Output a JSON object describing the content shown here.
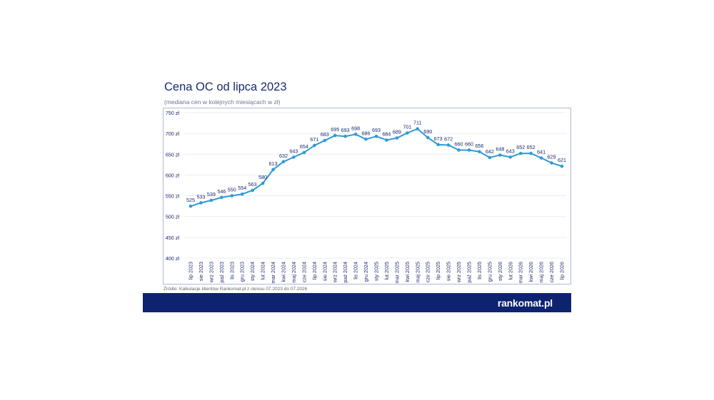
{
  "title": "Cena OC od lipca 2023",
  "subtitle": "(mediana cen w kolejnych miesiącach w zł)",
  "source": "Źródło: Kalkulacje klientów Rankomat.pl z okresu 07.2023 do 07.2026",
  "brand": {
    "logo_text": "rankomat.pl",
    "footer_color": "#0d2370"
  },
  "colors": {
    "line": "#2f9bd4",
    "text": "#1c2a6e",
    "grid": "#e4e8f1"
  },
  "chart_data": {
    "type": "line",
    "title": "Cena OC od lipca 2023",
    "subtitle": "(mediana cen w kolejnych miesiącach w zł)",
    "xlabel": "",
    "ylabel": "",
    "ylim": [
      400,
      750
    ],
    "y_ticks": [
      {
        "value": 400,
        "label": "400 zł"
      },
      {
        "value": 450,
        "label": "450 zł"
      },
      {
        "value": 500,
        "label": "500 zł"
      },
      {
        "value": 550,
        "label": "550 zł"
      },
      {
        "value": 600,
        "label": "600 zł"
      },
      {
        "value": 650,
        "label": "650 zł"
      },
      {
        "value": 700,
        "label": "700 zł"
      },
      {
        "value": 750,
        "label": "750 zł"
      }
    ],
    "grid": true,
    "legend": "none",
    "categories": [
      "lip 2023",
      "sie 2023",
      "wrz 2023",
      "paź 2023",
      "lis 2023",
      "gru 2023",
      "sty 2024",
      "lut 2024",
      "mar 2024",
      "kwi 2024",
      "maj 2024",
      "cze 2024",
      "lip 2024",
      "sie 2024",
      "wrz 2024",
      "paź 2024",
      "lis 2024",
      "gru 2024",
      "sty 2025",
      "lut 2025",
      "mar 2025",
      "kwi 2025",
      "maj 2025",
      "cze 2025",
      "lip 2025",
      "sie 2025",
      "wrz 2025",
      "paź 2025",
      "lis 2025",
      "gru 2025",
      "sty 2026",
      "lut 2026",
      "mar 2026",
      "kwi 2026",
      "maj 2026",
      "cze 2026",
      "lip 2026"
    ],
    "values": [
      525,
      533,
      539,
      546,
      550,
      554,
      563,
      580,
      613,
      632,
      643,
      654,
      671,
      683,
      695,
      693,
      698,
      686,
      693,
      684,
      689,
      701,
      711,
      690,
      673,
      672,
      660,
      660,
      656,
      642,
      648,
      643,
      652,
      652,
      641,
      629,
      621
    ]
  }
}
